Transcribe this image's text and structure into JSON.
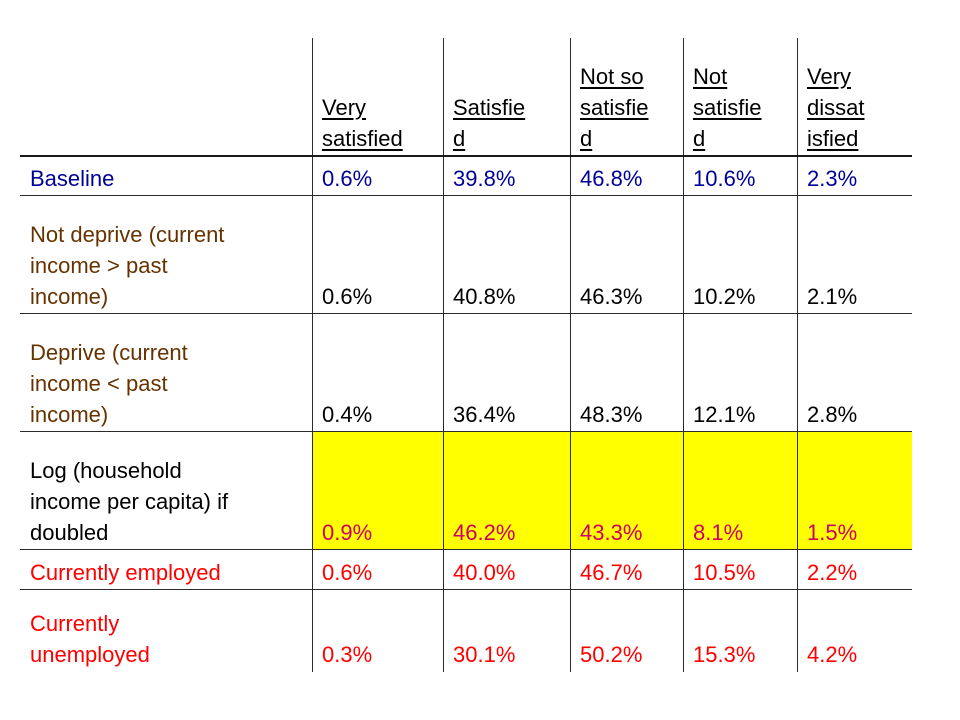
{
  "table": {
    "headers": [
      "",
      "Very\nsatisfied",
      "Satisfie\nd",
      "Not so\nsatisfie\nd",
      "Not\nsatisfie\nd",
      "Very\ndissat\nisfied"
    ],
    "rows": [
      {
        "label": "Baseline",
        "values": [
          "0.6%",
          "39.8%",
          "46.8%",
          "10.6%",
          "2.3%"
        ],
        "label_color": "#000099",
        "value_color": "#000099",
        "highlight": false
      },
      {
        "label": "Not deprive (current\nincome > past\nincome)",
        "values": [
          "0.6%",
          "40.8%",
          "46.3%",
          "10.2%",
          "2.1%"
        ],
        "label_color": "#663300",
        "value_color": "#000000",
        "highlight": false
      },
      {
        "label": "Deprive (current\nincome < past\nincome)",
        "values": [
          "0.4%",
          "36.4%",
          "48.3%",
          "12.1%",
          "2.8%"
        ],
        "label_color": "#663300",
        "value_color": "#000000",
        "highlight": false
      },
      {
        "label": "Log (household\nincome per capita) if\ndoubled",
        "values": [
          "0.9%",
          "46.2%",
          "43.3%",
          "8.1%",
          "1.5%"
        ],
        "label_color": "#000000",
        "value_color": "#cc0066",
        "highlight": true,
        "highlight_color": "#ffff00"
      },
      {
        "label": "Currently employed",
        "values": [
          "0.6%",
          "40.0%",
          "46.7%",
          "10.5%",
          "2.2%"
        ],
        "label_color": "#ff0000",
        "value_color": "#ff0000",
        "highlight": false
      },
      {
        "label": "Currently\nunemployed",
        "values": [
          "0.3%",
          "30.1%",
          "50.2%",
          "15.3%",
          "4.2%"
        ],
        "label_color": "#ff0000",
        "value_color": "#ff0000",
        "highlight": false
      }
    ]
  }
}
